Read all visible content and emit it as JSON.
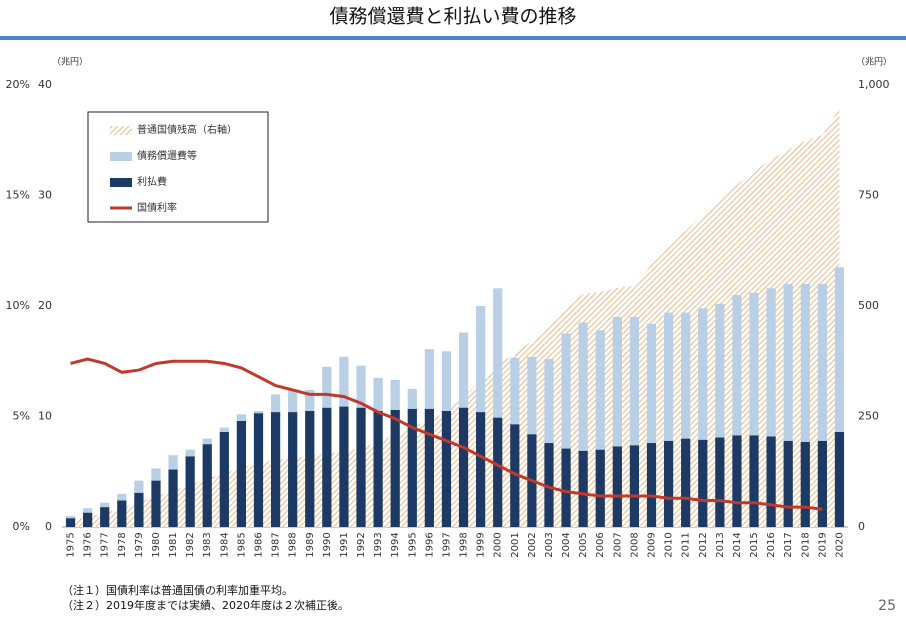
{
  "chart_data": {
    "type": "bar",
    "title": "債務償還費と利払い費の推移",
    "left_unit": "（兆円）",
    "right_unit": "（兆円）",
    "categories": [
      "1975",
      "1976",
      "1977",
      "1978",
      "1979",
      "1980",
      "1981",
      "1982",
      "1983",
      "1984",
      "1985",
      "1986",
      "1987",
      "1988",
      "1989",
      "1990",
      "1991",
      "1992",
      "1993",
      "1994",
      "1995",
      "1996",
      "1997",
      "1998",
      "1999",
      "2000",
      "2001",
      "2002",
      "2003",
      "2004",
      "2005",
      "2006",
      "2007",
      "2008",
      "2009",
      "2010",
      "2011",
      "2012",
      "2013",
      "2014",
      "2015",
      "2016",
      "2017",
      "2018",
      "2019",
      "2020"
    ],
    "stacked": true,
    "series": [
      {
        "name": "普通国債残高（右軸）",
        "type": "area",
        "axis": "y2",
        "color": "#e8a868",
        "values": [
          15,
          22,
          32,
          43,
          56,
          71,
          82,
          96,
          110,
          122,
          134,
          145,
          152,
          157,
          161,
          166,
          172,
          178,
          193,
          207,
          225,
          245,
          258,
          295,
          332,
          368,
          392,
          421,
          457,
          499,
          527,
          532,
          541,
          546,
          594,
          636,
          670,
          705,
          744,
          774,
          805,
          831,
          853,
          874,
          887,
          947
        ]
      },
      {
        "name": "債務償還費等",
        "type": "bar",
        "axis": "y",
        "color": "#b8cfe6",
        "stack_order": 1,
        "values": [
          0.2,
          0.4,
          0.4,
          0.6,
          1.1,
          1.1,
          1.3,
          0.6,
          0.5,
          0.4,
          0.6,
          0.2,
          1.6,
          2.0,
          1.9,
          3.7,
          4.5,
          3.8,
          3.0,
          2.7,
          1.8,
          5.4,
          5.4,
          6.8,
          9.6,
          11.7,
          6.0,
          7.0,
          7.6,
          10.4,
          11.6,
          10.8,
          11.7,
          11.6,
          10.8,
          11.6,
          11.4,
          11.9,
          12.1,
          12.7,
          12.9,
          13.4,
          14.2,
          14.3,
          14.2,
          14.9
        ]
      },
      {
        "name": "利払費",
        "type": "bar",
        "axis": "y",
        "color": "#1c3a63",
        "stack_order": 0,
        "values": [
          0.8,
          1.3,
          1.8,
          2.4,
          3.1,
          4.2,
          5.2,
          6.4,
          7.5,
          8.6,
          9.6,
          10.3,
          10.4,
          10.4,
          10.5,
          10.8,
          10.9,
          10.8,
          10.5,
          10.6,
          10.7,
          10.7,
          10.5,
          10.8,
          10.4,
          9.9,
          9.3,
          8.4,
          7.6,
          7.1,
          6.9,
          7.0,
          7.3,
          7.4,
          7.6,
          7.8,
          8.0,
          7.9,
          8.1,
          8.3,
          8.3,
          8.2,
          7.8,
          7.7,
          7.8,
          8.6
        ]
      },
      {
        "name": "国債利率",
        "type": "line",
        "axis": "y3",
        "color": "#c0392b",
        "values": [
          7.4,
          7.6,
          7.4,
          7.0,
          7.1,
          7.4,
          7.5,
          7.5,
          7.5,
          7.4,
          7.2,
          6.8,
          6.4,
          6.2,
          6.0,
          6.0,
          5.9,
          5.6,
          5.2,
          4.9,
          4.5,
          4.2,
          3.9,
          3.6,
          3.2,
          2.8,
          2.4,
          2.1,
          1.8,
          1.6,
          1.5,
          1.4,
          1.4,
          1.4,
          1.4,
          1.3,
          1.3,
          1.2,
          1.2,
          1.1,
          1.1,
          1.0,
          0.9,
          0.9,
          0.8,
          null
        ]
      }
    ],
    "ylim": [
      0,
      40
    ],
    "yticks": [
      0,
      10,
      20,
      30,
      40
    ],
    "y2lim": [
      0,
      1000
    ],
    "y2ticks": [
      0,
      250,
      500,
      750,
      {
        "value": 1000,
        "label": "1,000"
      }
    ],
    "y3lim": [
      0,
      20
    ],
    "y3ticks": [
      {
        "value": 0,
        "label": "0%"
      },
      {
        "value": 5,
        "label": "5%"
      },
      {
        "value": 10,
        "label": "10%"
      },
      {
        "value": 15,
        "label": "15%"
      },
      {
        "value": 20,
        "label": "20%"
      }
    ],
    "notes": [
      "（注１）国債利率は普通国債の利率加重平均。",
      "（注２）2019年度までは実績、2020年度は２次補正後。"
    ],
    "page_number": "25"
  }
}
